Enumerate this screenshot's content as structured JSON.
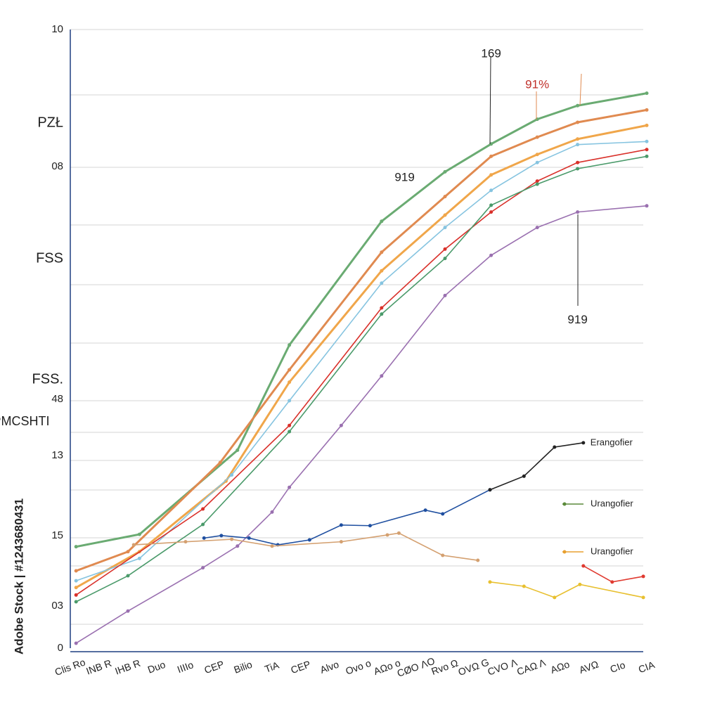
{
  "chart_data": {
    "type": "line",
    "y_label": "PMCSHTI",
    "y_labels": [
      "10",
      "PZŁ",
      "08",
      "FSS",
      "FSS.",
      "48",
      "13",
      "15",
      "03",
      "0"
    ],
    "x_labels": [
      "Clis Ro",
      "INB R",
      "IHB R",
      "Duo",
      "IIIIo",
      "CEP",
      "Bilio",
      "TiA",
      "CEP",
      "Alvo",
      "Ovo o",
      "AΩo o",
      "CØO ΛO",
      "Rvo Ω",
      "OVΩ G",
      "CVO Λ",
      "CAΩ Λ",
      "AΩo",
      "AVΩ",
      "CIo",
      "CIA"
    ],
    "xlim": [
      0,
      100
    ],
    "ylim": [
      0,
      100
    ],
    "series": [
      {
        "color": "#6aab72",
        "x": [
          1,
          12,
          29,
          38,
          54,
          65,
          73,
          81,
          88,
          100
        ],
        "values": [
          16.4,
          18.4,
          32,
          49,
          69,
          77,
          81.5,
          85.5,
          87.7,
          89.7
        ]
      },
      {
        "color": "#e08a50",
        "x": [
          1,
          10,
          26,
          38,
          54,
          65,
          73,
          81,
          88,
          100
        ],
        "values": [
          12.5,
          15.6,
          30,
          45,
          64,
          73,
          79.5,
          82.6,
          85,
          87
        ]
      },
      {
        "color": "#f0a64a",
        "x": [
          1,
          12,
          27,
          38,
          54,
          65,
          73,
          81,
          88,
          100
        ],
        "values": [
          9.8,
          15.6,
          27,
          43,
          61,
          70,
          76.5,
          79.8,
          82.3,
          84.5
        ]
      },
      {
        "color": "#86c4e0",
        "x": [
          1,
          12,
          28,
          38,
          54,
          65,
          73,
          81,
          88,
          100
        ],
        "values": [
          10.9,
          14.5,
          28,
          40,
          59,
          68,
          74,
          78.5,
          81.4,
          81.9
        ]
      },
      {
        "color": "#d9302a",
        "x": [
          1,
          23,
          38,
          54,
          65,
          73,
          81,
          88,
          100
        ],
        "values": [
          8.6,
          22.5,
          36,
          55,
          64.5,
          70.5,
          75.5,
          78.5,
          80.6
        ]
      },
      {
        "color": "#4a9a6a",
        "x": [
          1,
          10,
          23,
          38,
          54,
          65,
          73,
          81,
          88,
          100
        ],
        "values": [
          7.5,
          11.7,
          20,
          35,
          54,
          63,
          71.6,
          75,
          77.5,
          79.5
        ]
      },
      {
        "color": "#9a70b0",
        "x": [
          1,
          10,
          23,
          29,
          35,
          38,
          47,
          54,
          65,
          73,
          81,
          88,
          100
        ],
        "values": [
          0.8,
          6,
          13,
          16.5,
          22,
          26,
          36,
          44,
          57,
          63.5,
          68,
          70.5,
          71.5
        ]
      },
      {
        "color": "#1f4fa0",
        "x": [
          23.2,
          26.2,
          31,
          36,
          41.5,
          47,
          52,
          61.6,
          64.6,
          72.8
        ],
        "values": [
          17.8,
          18.2,
          17.8,
          16.7,
          17.5,
          19.9,
          19.8,
          22.3,
          21.7,
          25.6
        ]
      },
      {
        "name": "Erangofier",
        "color": "#222222",
        "x": [
          72.8,
          78.7,
          84,
          89
        ],
        "values": [
          25.6,
          27.8,
          32.5,
          33.2
        ]
      },
      {
        "color": "#d4a070",
        "x": [
          11,
          20,
          28,
          35,
          47,
          55,
          57,
          64.6,
          70.7
        ],
        "values": [
          16.7,
          17.2,
          17.6,
          16.5,
          17.2,
          18.3,
          18.6,
          15,
          14.2
        ]
      },
      {
        "color": "#e8c030",
        "x": [
          72.8,
          78.7,
          84,
          88.4,
          99.4
        ],
        "values": [
          10.7,
          10,
          8.2,
          10.3,
          8.2
        ]
      },
      {
        "color": "#e03a30",
        "x": [
          89,
          94,
          99.4
        ],
        "values": [
          13.3,
          10.7,
          11.6
        ]
      }
    ],
    "legend_items": [
      {
        "label": "Urangofier",
        "color": "#5a8a3a"
      },
      {
        "label": "Urangofier",
        "color": "#e8a030"
      }
    ],
    "annotations": [
      {
        "text": "169",
        "x": 73,
        "y": 96,
        "color": "#222222"
      },
      {
        "text": "91%",
        "x": 81,
        "y": 91,
        "color": "#c0302a"
      },
      {
        "text": "919",
        "x": 58,
        "y": 76,
        "color": "#222222"
      },
      {
        "text": "919",
        "x": 88,
        "y": 53,
        "color": "#222222"
      }
    ],
    "watermark": "Adobe Stock | #1243680431",
    "grid": true
  }
}
